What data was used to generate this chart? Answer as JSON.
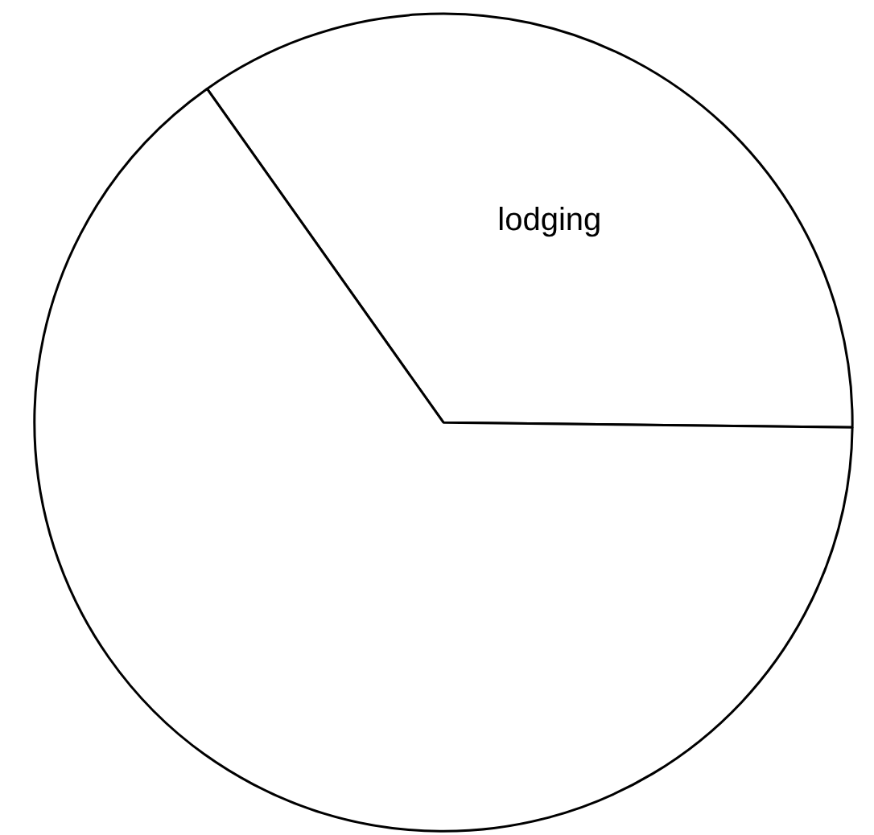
{
  "chart_data": {
    "type": "pie",
    "categories": [
      "lodging",
      null
    ],
    "values": [
      35,
      65
    ],
    "colors": [
      "#ffffff",
      "#ffffff"
    ]
  }
}
